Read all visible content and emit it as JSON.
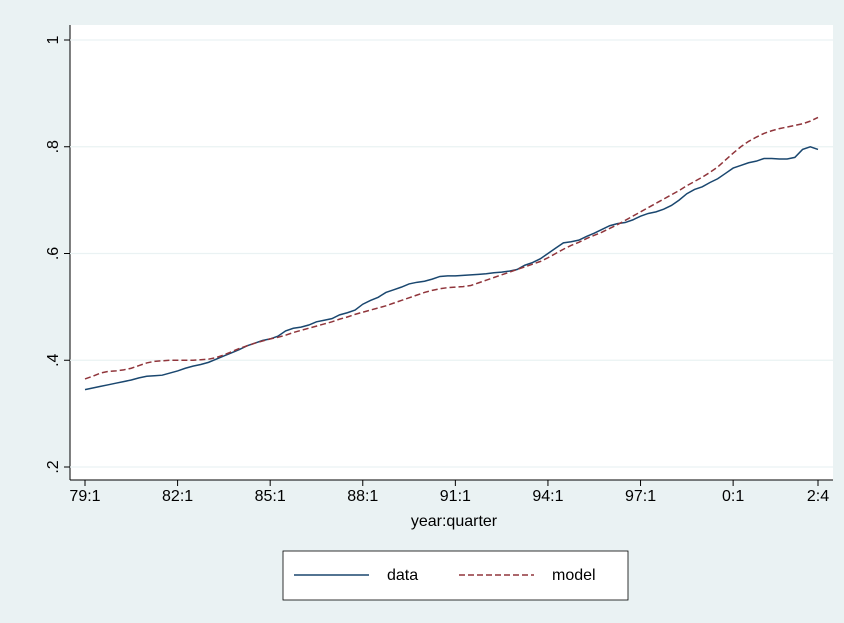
{
  "chart_data": {
    "type": "line",
    "x_label": "year:quarter",
    "categories": [
      "79:1",
      null,
      null,
      null,
      null,
      null,
      null,
      null,
      null,
      null,
      null,
      null,
      "82:1",
      null,
      null,
      null,
      null,
      null,
      null,
      null,
      null,
      null,
      null,
      null,
      "85:1",
      null,
      null,
      null,
      null,
      null,
      null,
      null,
      null,
      null,
      null,
      null,
      "88:1",
      null,
      null,
      null,
      null,
      null,
      null,
      null,
      null,
      null,
      null,
      null,
      "91:1",
      null,
      null,
      null,
      null,
      null,
      null,
      null,
      null,
      null,
      null,
      null,
      "94:1",
      null,
      null,
      null,
      null,
      null,
      null,
      null,
      null,
      null,
      null,
      null,
      "97:1",
      null,
      null,
      null,
      null,
      null,
      null,
      null,
      null,
      null,
      null,
      null,
      "0:1",
      null,
      null,
      null,
      null,
      null,
      null,
      null,
      null,
      null,
      null,
      "2:4"
    ],
    "series": [
      {
        "name": "data",
        "color": "#1a476f",
        "dash": false,
        "values": [
          0.345,
          0.348,
          0.351,
          0.354,
          0.357,
          0.36,
          0.363,
          0.367,
          0.37,
          0.371,
          0.372,
          0.376,
          0.38,
          0.385,
          0.389,
          0.392,
          0.396,
          0.402,
          0.408,
          0.414,
          0.42,
          0.427,
          0.432,
          0.437,
          0.44,
          0.445,
          0.455,
          0.46,
          0.462,
          0.466,
          0.472,
          0.475,
          0.478,
          0.485,
          0.489,
          0.494,
          0.505,
          0.512,
          0.518,
          0.527,
          0.532,
          0.537,
          0.543,
          0.546,
          0.548,
          0.552,
          0.557,
          0.558,
          0.558,
          0.559,
          0.56,
          0.561,
          0.562,
          0.564,
          0.565,
          0.567,
          0.57,
          0.578,
          0.583,
          0.59,
          0.6,
          0.61,
          0.62,
          0.622,
          0.625,
          0.632,
          0.638,
          0.645,
          0.652,
          0.656,
          0.658,
          0.663,
          0.67,
          0.675,
          0.678,
          0.683,
          0.69,
          0.7,
          0.712,
          0.72,
          0.725,
          0.733,
          0.74,
          0.75,
          0.76,
          0.765,
          0.77,
          0.773,
          0.778,
          0.778,
          0.777,
          0.777,
          0.78,
          0.795,
          0.8,
          0.795
        ]
      },
      {
        "name": "model",
        "color": "#90353b",
        "dash": true,
        "values": [
          0.365,
          0.37,
          0.376,
          0.379,
          0.38,
          0.382,
          0.385,
          0.39,
          0.395,
          0.398,
          0.399,
          0.4,
          0.4,
          0.4,
          0.4,
          0.401,
          0.402,
          0.405,
          0.41,
          0.416,
          0.422,
          0.427,
          0.432,
          0.436,
          0.44,
          0.443,
          0.447,
          0.452,
          0.456,
          0.46,
          0.464,
          0.468,
          0.472,
          0.477,
          0.481,
          0.486,
          0.49,
          0.494,
          0.498,
          0.502,
          0.507,
          0.512,
          0.517,
          0.522,
          0.527,
          0.531,
          0.534,
          0.536,
          0.537,
          0.538,
          0.54,
          0.545,
          0.55,
          0.555,
          0.56,
          0.565,
          0.57,
          0.575,
          0.58,
          0.585,
          0.592,
          0.6,
          0.608,
          0.615,
          0.621,
          0.628,
          0.634,
          0.64,
          0.647,
          0.654,
          0.662,
          0.67,
          0.678,
          0.686,
          0.694,
          0.702,
          0.71,
          0.718,
          0.727,
          0.735,
          0.743,
          0.752,
          0.762,
          0.775,
          0.788,
          0.8,
          0.81,
          0.818,
          0.825,
          0.83,
          0.834,
          0.837,
          0.84,
          0.843,
          0.848,
          0.855
        ]
      }
    ],
    "ylim": [
      0.2,
      1
    ],
    "yticks": [
      {
        "value": 0.2,
        "label": ".2"
      },
      {
        "value": 0.4,
        "label": ".4"
      },
      {
        "value": 0.6,
        "label": ".6"
      },
      {
        "value": 0.8,
        "label": ".8"
      },
      {
        "value": 1,
        "label": "1"
      }
    ],
    "grid": true,
    "legend": "bottom"
  }
}
